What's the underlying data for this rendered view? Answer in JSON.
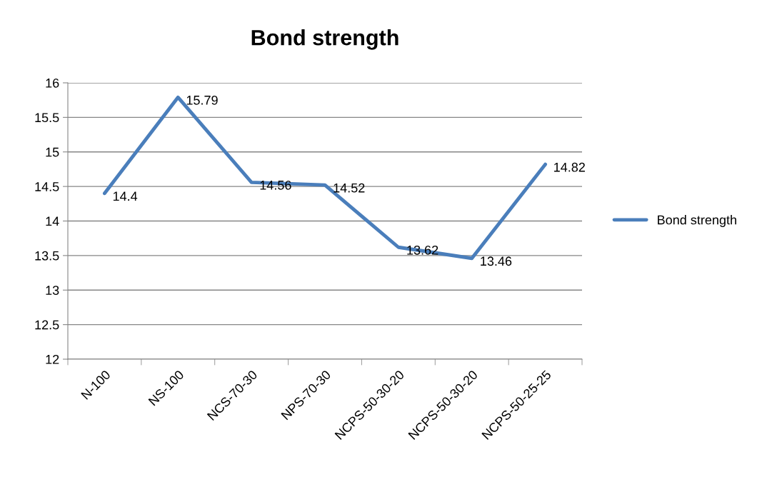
{
  "chart_data": {
    "type": "line",
    "title": "Bond strength",
    "categories": [
      "N-100",
      "NS-100",
      "NCS-70-30",
      "NPS-70-30",
      "NCPS-50-30-20",
      "NCPS-50-30-20",
      "NCPS-50-25-25"
    ],
    "series": [
      {
        "name": "Bond strength",
        "color": "#4a7ebb",
        "values": [
          14.4,
          15.79,
          14.56,
          14.52,
          13.62,
          13.46,
          14.82
        ]
      }
    ],
    "ylim": [
      12,
      16
    ],
    "yticks": [
      12,
      12.5,
      13,
      13.5,
      14,
      14.5,
      15,
      15.5,
      16
    ],
    "grid": "y",
    "legend": "right",
    "data_labels": true,
    "marker": "none",
    "line_style": "solid"
  }
}
